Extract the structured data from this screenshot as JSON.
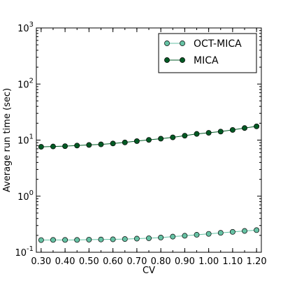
{
  "chart_data": {
    "type": "line",
    "xlabel": "CV",
    "ylabel": "Average run time (sec)",
    "yscale": "log",
    "ylim": [
      0.1,
      1000
    ],
    "xlim": [
      0.28,
      1.22
    ],
    "grid": false,
    "legend_placement": "top-right",
    "x": [
      0.3,
      0.35,
      0.4,
      0.45,
      0.5,
      0.55,
      0.6,
      0.65,
      0.7,
      0.75,
      0.8,
      0.85,
      0.9,
      0.95,
      1.0,
      1.05,
      1.1,
      1.15,
      1.2
    ],
    "x_tick_labels": [
      "0.30",
      "0.40",
      "0.50",
      "0.60",
      "0.70",
      "0.80",
      "0.90",
      "1.00",
      "1.10",
      "1.20"
    ],
    "x_tick_values": [
      0.3,
      0.4,
      0.5,
      0.6,
      0.7,
      0.8,
      0.9,
      1.0,
      1.1,
      1.2
    ],
    "y_ticks": [
      {
        "value": 0.1,
        "base": "10",
        "exp": "-1"
      },
      {
        "value": 1,
        "base": "10",
        "exp": "0"
      },
      {
        "value": 10,
        "base": "10",
        "exp": "1"
      },
      {
        "value": 100,
        "base": "10",
        "exp": "2"
      },
      {
        "value": 1000,
        "base": "10",
        "exp": "3"
      }
    ],
    "series": [
      {
        "name": "OCT-MICA",
        "color": "#66c2a4",
        "values": [
          0.165,
          0.166,
          0.166,
          0.166,
          0.168,
          0.169,
          0.17,
          0.172,
          0.175,
          0.178,
          0.183,
          0.19,
          0.197,
          0.205,
          0.213,
          0.222,
          0.231,
          0.24,
          0.248
        ]
      },
      {
        "name": "MICA",
        "color": "#005a24",
        "values": [
          7.6,
          7.7,
          7.8,
          8.0,
          8.2,
          8.4,
          8.7,
          9.1,
          9.6,
          10.1,
          10.6,
          11.2,
          12.0,
          12.9,
          13.5,
          14.2,
          15.2,
          16.4,
          17.6
        ]
      }
    ]
  }
}
